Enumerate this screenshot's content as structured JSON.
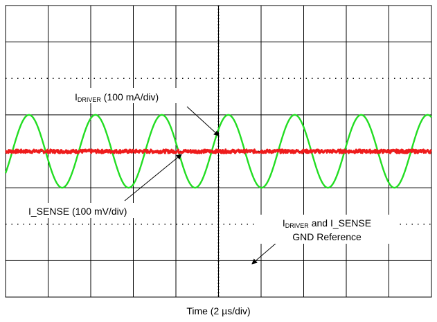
{
  "chart_data": {
    "type": "line",
    "title": "",
    "xlabel": "Time (2 µs/div)",
    "ylabel": "",
    "divisions": {
      "x": 10,
      "y": 8
    },
    "grid": true,
    "series": [
      {
        "name": "IDRIVER (100 mA/div)",
        "unit": "div",
        "color": "#22dd22",
        "waveform": "sine",
        "period_div": 1.56,
        "amplitude_div": 1.0,
        "offset_div": 0.0,
        "first_peak_div": 0.55
      },
      {
        "name": "I_SENSE (100 mV/div)",
        "unit": "div",
        "color": "#ee1c1c",
        "waveform": "dc_noisy",
        "offset_div": 0.0,
        "noise_div": 0.05
      }
    ],
    "annotations": [
      {
        "id": "idriver",
        "prefix": "I",
        "sub": "DRIVER",
        "suffix": " (100 mA/div)"
      },
      {
        "id": "isense",
        "text": "I_SENSE (100 mV/div)"
      },
      {
        "id": "gnd",
        "prefix": "I",
        "sub": "DRIVER",
        "suffix": " and I_SENSE",
        "line2": "GND Reference"
      }
    ]
  }
}
